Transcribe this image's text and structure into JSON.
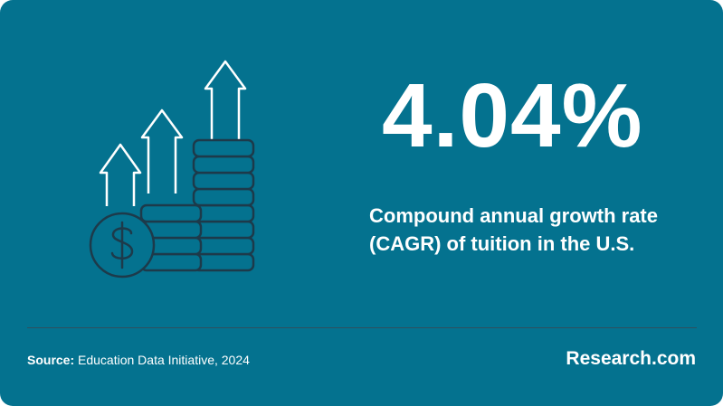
{
  "stat": {
    "value": "4.04%"
  },
  "description": {
    "line1": "Compound annual growth rate",
    "line2": "(CAGR) of tuition in the U.S."
  },
  "source": {
    "label": "Source:",
    "text": "Education Data Initiative, 2024"
  },
  "brand": {
    "name": "Research.com"
  },
  "icons": {
    "illustration": "coins-growth-icon",
    "coin": "dollar-coin-icon",
    "arrows": "up-arrow-icon"
  },
  "colors": {
    "background": "#04728F",
    "text": "#FFFFFF",
    "stroke_dark": "#1D3A4A",
    "divider": "#2F4F5D"
  }
}
